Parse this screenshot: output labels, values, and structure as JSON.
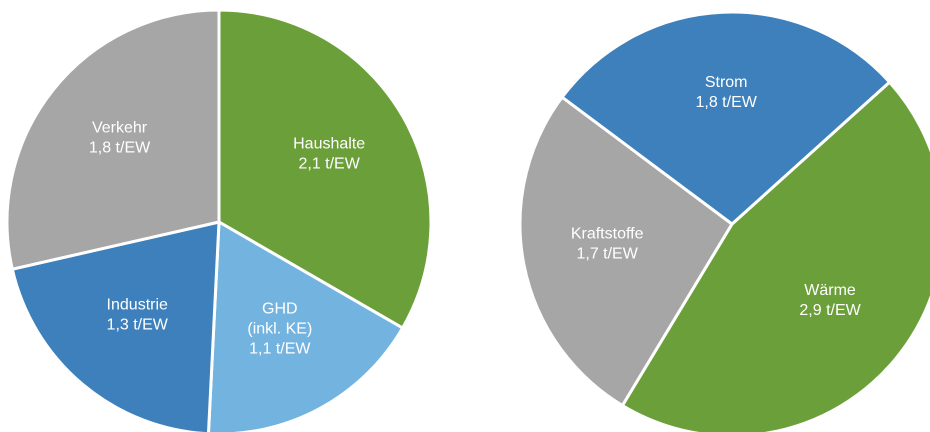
{
  "chart_data": [
    {
      "type": "pie",
      "categories": [
        "Haushalte",
        "GHD\n(inkl. KE)",
        "Industrie",
        "Verkehr"
      ],
      "values": [
        2.1,
        1.1,
        1.3,
        1.8
      ],
      "value_labels": [
        "2,1 t/EW",
        "1,1 t/EW",
        "1,3 t/EW",
        "1,8 t/EW"
      ],
      "colors": [
        "#6b9f3a",
        "#72b3e0",
        "#3e80bb",
        "#a6a6a6"
      ]
    },
    {
      "type": "pie",
      "categories": [
        "Wärme",
        "Kraftstoffe",
        "Strom"
      ],
      "values": [
        2.9,
        1.7,
        1.8
      ],
      "value_labels": [
        "2,9 t/EW",
        "1,7 t/EW",
        "1,8 t/EW"
      ],
      "colors": [
        "#6b9f3a",
        "#a6a6a6",
        "#3e80bb"
      ]
    }
  ]
}
